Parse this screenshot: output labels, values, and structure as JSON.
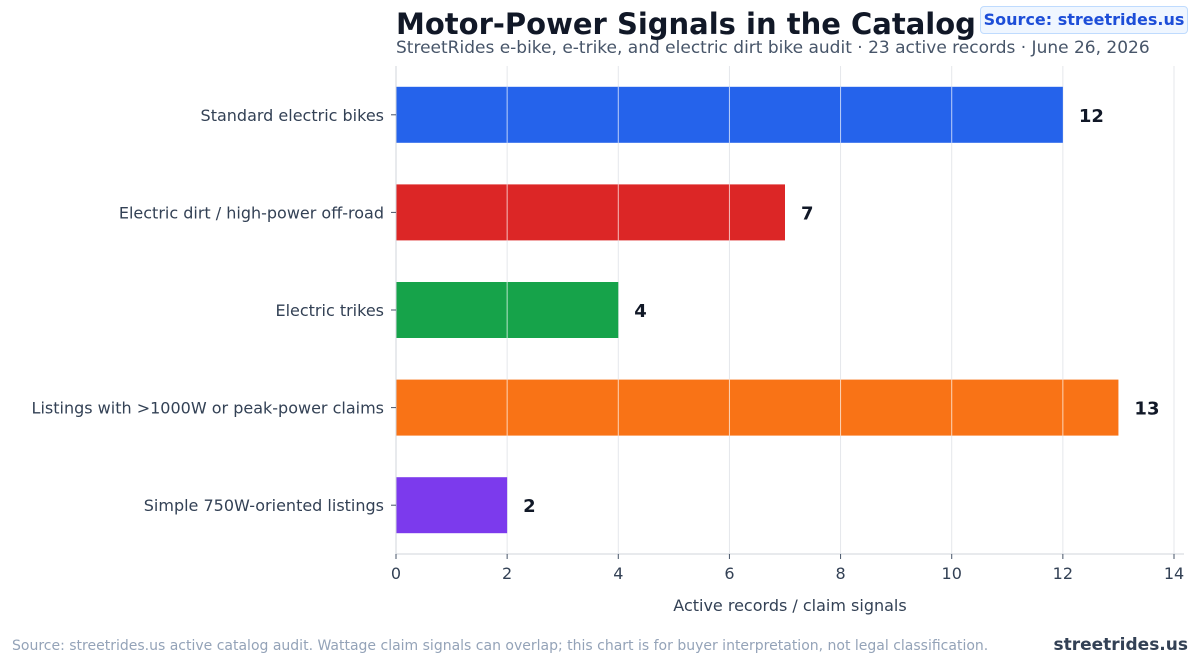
{
  "header": {
    "title": "Motor-Power Signals in the Catalog",
    "subtitle": "StreetRides e-bike, e-trike, and electric dirt bike audit · 23 active records · June 26, 2026",
    "source_badge": "Source: streetrides.us"
  },
  "footer": {
    "note": "Source: streetrides.us active catalog audit. Wattage claim signals can overlap; this chart is for buyer interpretation, not legal classification.",
    "brand": "streetrides.us"
  },
  "chart_data": {
    "type": "bar",
    "orientation": "horizontal",
    "categories": [
      "Standard electric bikes",
      "Electric dirt / high-power off-road",
      "Electric trikes",
      "Listings with >1000W or peak-power claims",
      "Simple 750W-oriented listings"
    ],
    "values": [
      12,
      7,
      4,
      13,
      2
    ],
    "colors": [
      "#2563eb",
      "#dc2626",
      "#16a34a",
      "#f97316",
      "#7c3aed"
    ],
    "xlabel": "Active records / claim signals",
    "ylabel": "",
    "xlim": [
      0,
      14
    ],
    "xticks": [
      0,
      2,
      4,
      6,
      8,
      10,
      12,
      14
    ],
    "grid": true,
    "data_labels": true
  }
}
